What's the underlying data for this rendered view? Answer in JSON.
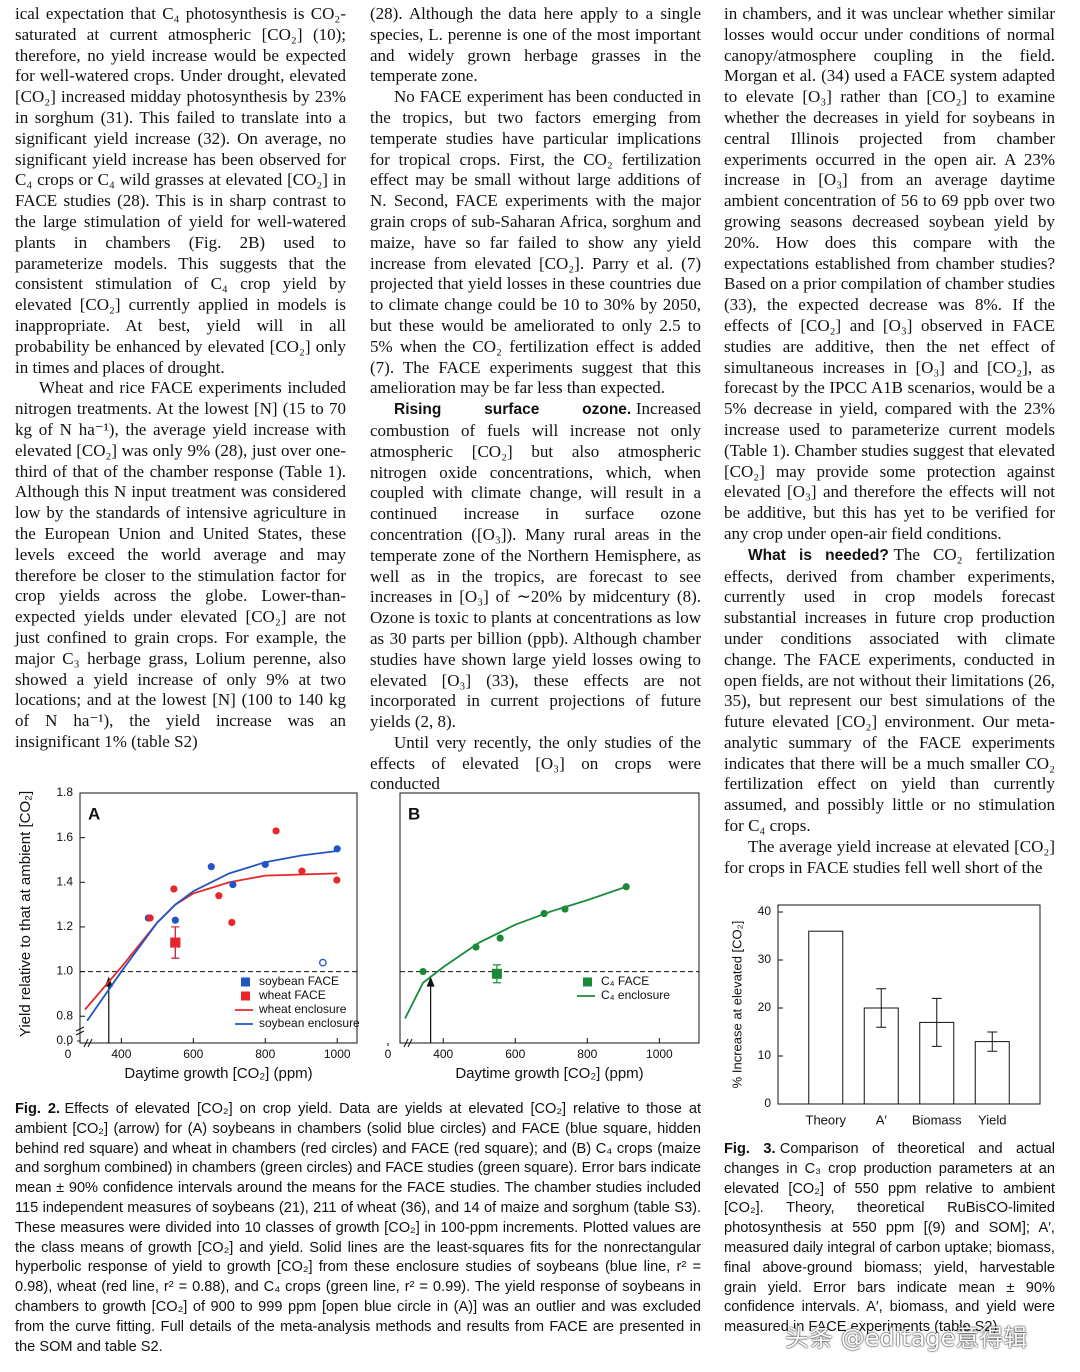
{
  "columns": [
    [
      {
        "text": "ical expectation that C₄ photosynthesis is CO₂-saturated at current atmospheric [CO₂] (10); therefore, no yield increase would be expected for well-watered crops. Under drought, elevated [CO₂] increased midday photosynthesis by 23% in sorghum (31). This failed to translate into a significant yield increase (32). On average, no significant yield increase has been observed for C₄ crops or C₄ wild grasses at elevated [CO₂] in FACE studies (28). This is in sharp contrast to the large stimulation of yield for well-watered plants in chambers (Fig. 2B) used to parameterize models. This suggests that the consistent stimulation of C₄ crop yield by elevated [CO₂] currently applied in models is inappropriate. At best, yield will in all probability be enhanced by elevated [CO₂] only in times and places of drought."
      },
      {
        "text": "Wheat and rice FACE experiments included nitrogen treatments. At the lowest [N] (15 to 70 kg of N ha⁻¹), the average yield increase with elevated [CO₂] was only 9% (28), just over one-third of that of the chamber response (Table 1). Although this N input treatment was considered low by the standards of intensive agriculture in the European Union and United States, these levels exceed the world average and may therefore be closer to the stimulation factor for crop yields across the globe. Lower-than-expected yields under elevated [CO₂] are not just confined to grain crops. For example, the major C₃ herbage grass, Lolium perenne, also showed a yield increase of only 9% at two locations; and at the lowest [N] (100 to 140 kg of N ha⁻¹), the yield increase was an insignificant 1% (table S2)"
      }
    ],
    [
      {
        "text": "(28). Although the data here apply to a single species, L. perenne is one of the most important and widely grown herbage grasses in the temperate zone."
      },
      {
        "text": "No FACE experiment has been conducted in the tropics, but two factors emerging from temperate studies have particular implications for tropical crops. First, the CO₂ fertilization effect may be small without large additions of N. Second, FACE experiments with the major grain crops of sub-Saharan Africa, sorghum and maize, have so far failed to show any yield increase from elevated [CO₂]. Parry et al. (7) projected that yield losses in these countries due to climate change could be 10 to 30% by 2050, but these would be ameliorated to only 2.5 to 5% when the CO₂ fertilization effect is added (7). The FACE experiments suggest that this amelioration may be far less than expected."
      },
      {
        "heading": "Rising surface ozone.",
        "text": "Increased combustion of fuels will increase not only atmospheric [CO₂] but also atmospheric nitrogen oxide concentrations, which, when coupled with climate change, will result in a continued increase in surface ozone concentration ([O₃]). Many rural areas in the temperate zone of the Northern Hemisphere, as well as in the tropics, are forecast to see increases in [O₃] of ∼20% by midcentury (8). Ozone is toxic to plants at concentrations as low as 30 parts per billion (ppb). Although chamber studies have shown large yield losses owing to elevated [O₃] (33), these effects are not incorporated in current projections of future yields (2, 8)."
      },
      {
        "text": "Until very recently, the only studies of the effects of elevated [O₃] on crops were conducted"
      }
    ],
    [
      {
        "text": "in chambers, and it was unclear whether similar losses would occur under conditions of normal canopy/atmosphere coupling in the field. Morgan et al. (34) used a FACE system adapted to elevate [O₃] rather than [CO₂] to examine whether the decreases in yield for soybeans in central Illinois projected from chamber experiments occurred in the open air. A 23% increase in [O₃] from an average daytime ambient concentration of 56 to 69 ppb over two growing seasons decreased soybean yield by 20%. How does this compare with the expectations established from chamber studies? Based on a prior compilation of chamber studies (33), the expected decrease was 8%. If the effects of [CO₂] and [O₃] observed in FACE studies are additive, then the net effect of simultaneous increases in [O₃] and [CO₂], as forecast by the IPCC A1B scenarios, would be a 5% decrease in yield, compared with the 23% increase used to parameterize current models (Table 1). Chamber studies suggest that elevated [CO₂] may provide some protection against elevated [O₃] and therefore the effects will not be additive, but this has yet to be verified for any crop under open-air field conditions."
      },
      {
        "heading": "What is needed?",
        "text": "The CO₂ fertilization effects, derived from chamber experiments, currently used in crop models forecast substantial increases in future crop production under conditions associated with climate change. The FACE experiments, conducted in open fields, are not without their limitations (26, 35), but represent our best simulations of the future elevated [CO₂] environment. Our meta-analytic summary of the FACE experiments indicates that there will be a much smaller CO₂ fertilization effect on yield than currently assumed, and possibly little or no stimulation for C₄ crops."
      },
      {
        "text": "The average yield increase at elevated [CO₂] for crops in FACE studies fell well short of the"
      }
    ]
  ],
  "figure2": {
    "label": "Fig. 2.",
    "caption": "Effects of elevated [CO₂] on crop yield. Data are yields at elevated [CO₂] relative to those at ambient [CO₂] (arrow) for (A) soybeans in chambers (solid blue circles) and FACE (blue square, hidden behind red square) and wheat in chambers (red circles) and FACE (red square); and (B) C₄ crops (maize and sorghum combined) in chambers (green circles) and FACE studies (green square). Error bars indicate mean ± 90% confidence intervals around the means for the FACE studies. The chamber studies included 115 independent measures of soybeans (21), 211 of wheat (36), and 14 of maize and sorghum (table S3). These measures were divided into 10 classes of growth [CO₂] in 100-ppm increments. Plotted values are the class means of growth [CO₂] and yield. Solid lines are the least-squares fits for the nonrectangular hyperbolic response of yield to growth [CO₂] from these enclosure studies of soybeans (blue line, r² = 0.98), wheat (red line, r² = 0.88), and C₄ crops (green line, r² = 0.99). The yield response of soybeans in chambers to growth [CO₂] of 900 to 999 ppm [open blue circle in (A)] was an outlier and was excluded from the curve fitting. Full details of the meta-analysis methods and results from FACE are presented in the SOM and table S2."
  },
  "figure3": {
    "label": "Fig. 3.",
    "caption": "Comparison of theoretical and actual changes in C₃ crop production parameters at an elevated [CO₂] of 550 ppm relative to ambient [CO₂]. Theory, theoretical RuBisCO-limited photosynthesis at 550 ppm [(9) and SOM]; A′, measured daily integral of carbon uptake; biomass, final above-ground biomass; yield, harvestable grain yield. Error bars indicate mean ± 90% confidence intervals. A′, biomass, and yield were measured in FACE experiments (table S2)."
  },
  "watermark": "头条 @editage意得辑",
  "chart_data": [
    {
      "type": "scatter",
      "panel_label": "A",
      "y_label": "Yield relative to that at ambient [CO₂]",
      "x_label": "Daytime growth [CO₂] (ppm)",
      "xlim": [
        285,
        1055
      ],
      "xticks": [
        400,
        600,
        800,
        1000
      ],
      "x_break_tick": 0,
      "ylim": [
        0.68,
        1.8
      ],
      "yticks": [
        0.8,
        {
          "value": 1,
          "label": "1.0"
        },
        1.2,
        1.4,
        1.6,
        1.8
      ],
      "y_break_tick": {
        "value": 0,
        "label": "0.0"
      },
      "reference_line": 1,
      "ambient_co2": 365,
      "legend": "lower right",
      "series": [
        {
          "color": "#2255c4",
          "marker": "circle",
          "x": [
            475,
            550,
            650,
            710,
            800,
            1000
          ],
          "values": [
            1.24,
            1.23,
            1.47,
            1.39,
            1.48,
            1.55
          ]
        },
        {
          "color": "#e8262a",
          "marker": "circle",
          "x": [
            480,
            546,
            671,
            707,
            830,
            902,
            999
          ],
          "values": [
            1.24,
            1.37,
            1.34,
            1.22,
            1.63,
            1.45,
            1.41
          ]
        },
        {
          "color": "#2255c4",
          "marker": "open-circle",
          "x": [
            960
          ],
          "values": [
            1.04
          ]
        },
        {
          "name": "soybean FACE",
          "color": "#2255c4",
          "marker": "square",
          "x": [
            550
          ],
          "values": [
            1.13
          ],
          "errors": [
            0.07
          ]
        },
        {
          "name": "wheat FACE",
          "color": "#e8262a",
          "marker": "square",
          "x": [
            550
          ],
          "values": [
            1.13
          ],
          "errors": [
            0.07
          ]
        },
        {
          "name": "wheat enclosure",
          "color": "#e8262a",
          "marker": "line",
          "x": [
            299,
            400,
            500,
            550,
            600,
            700,
            800,
            1000
          ],
          "values": [
            0.83,
            1.02,
            1.22,
            1.3,
            1.35,
            1.4,
            1.43,
            1.44
          ]
        },
        {
          "name": "soybean enclosure",
          "color": "#2255c4",
          "marker": "line",
          "x": [
            305,
            400,
            500,
            550,
            600,
            700,
            800,
            900,
            1000
          ],
          "values": [
            0.78,
            1.0,
            1.22,
            1.3,
            1.36,
            1.44,
            1.49,
            1.52,
            1.54
          ]
        }
      ]
    },
    {
      "type": "scatter",
      "panel_label": "B",
      "x_label": "Daytime growth [CO₂] (ppm)",
      "xlim": [
        280,
        1110
      ],
      "xticks": [
        400,
        600,
        800,
        1000
      ],
      "x_break_tick": 0,
      "ylim": [
        0.68,
        1.8
      ],
      "reference_line": 1,
      "ambient_co2": 365,
      "legend": "lower right",
      "series": [
        {
          "color": "#1a8a3a",
          "marker": "circle",
          "x": [
            344,
            491,
            558,
            680,
            738,
            908
          ],
          "values": [
            1.0,
            1.11,
            1.15,
            1.26,
            1.28,
            1.38
          ]
        },
        {
          "name": "C₄ FACE",
          "color": "#1a8a3a",
          "marker": "square",
          "x": [
            549
          ],
          "values": [
            0.99
          ],
          "errors": [
            0.04
          ]
        },
        {
          "name": "C₄ enclosure",
          "color": "#1a8a3a",
          "marker": "line",
          "x": [
            294,
            344,
            400,
            500,
            600,
            700,
            800,
            908
          ],
          "values": [
            0.79,
            0.95,
            1.02,
            1.13,
            1.21,
            1.27,
            1.32,
            1.38
          ]
        }
      ]
    },
    {
      "type": "bar",
      "y_label": "% Increase at elevated [CO₂]",
      "categories": [
        "Theory",
        "A′",
        "Biomass",
        "Yield"
      ],
      "values": [
        36,
        20,
        17,
        13
      ],
      "errors": [
        null,
        4,
        5,
        2
      ],
      "ylim": [
        0,
        40
      ],
      "yticks": [
        0,
        10,
        20,
        30,
        40
      ],
      "color": "#ffffff"
    }
  ]
}
